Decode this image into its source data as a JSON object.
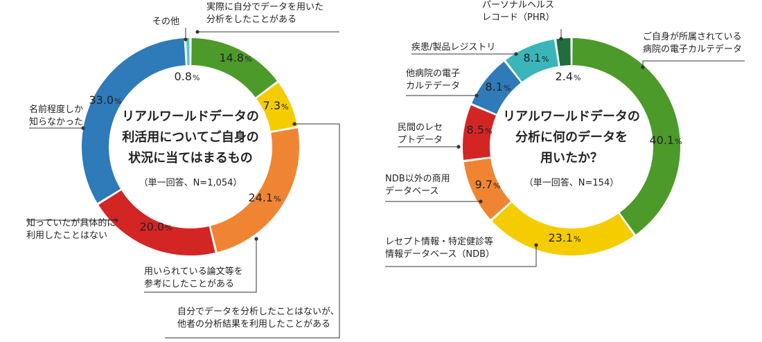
{
  "chart_data": [
    {
      "type": "pie",
      "donut": true,
      "center_title": [
        "リアルワールドデータの",
        "利活用についてご自身の",
        "状況に当てはまるもの"
      ],
      "center_subtitle": "（単一回答、N=1,054）",
      "slices": [
        {
          "label": [
            "実際に自分でデータを用いた",
            "分析をしたことがある"
          ],
          "value": 14.8,
          "value_text": "14.8",
          "color": "#4c9a2a"
        },
        {
          "label": [
            "自分でデータを分析したことはないが、",
            "他者の分析結果を利用したことがある"
          ],
          "value": 7.3,
          "value_text": "7.3",
          "color": "#f5cc00"
        },
        {
          "label": [
            "用いられている論文等を",
            "参考にしたことがある"
          ],
          "value": 24.1,
          "value_text": "24.1",
          "color": "#ef8533"
        },
        {
          "label": [
            "知っていたが具体的に",
            "利用したことはない"
          ],
          "value": 20.0,
          "value_text": "20.0",
          "color": "#d42525"
        },
        {
          "label": [
            "名前程度しか",
            "知らなかった"
          ],
          "value": 33.0,
          "value_text": "33.0",
          "color": "#2f7ab8"
        },
        {
          "label": [
            "その他"
          ],
          "value": 0.8,
          "value_text": "0.8",
          "color": "#5ec4c4"
        }
      ]
    },
    {
      "type": "pie",
      "donut": true,
      "center_title": [
        "リアルワールドデータの",
        "分析に何のデータを",
        "用いたか？"
      ],
      "center_subtitle": "（単一回答、N=154）",
      "slices": [
        {
          "label": [
            "ご自身が所属されている",
            "病院の電子カルテデータ"
          ],
          "value": 40.1,
          "value_text": "40.1",
          "color": "#4c9a2a"
        },
        {
          "label": [
            "レセプト情報・特定健診等",
            "情報データベース（NDB）"
          ],
          "value": 23.1,
          "value_text": "23.1",
          "color": "#f5cc00"
        },
        {
          "label": [
            "NDB以外の商用",
            "データベース"
          ],
          "value": 9.7,
          "value_text": "9.7",
          "color": "#ef8533"
        },
        {
          "label": [
            "民間のレセ",
            "プトデータ"
          ],
          "value": 8.5,
          "value_text": "8.5",
          "color": "#d42525"
        },
        {
          "label": [
            "他病院の電子",
            "カルテデータ"
          ],
          "value": 8.1,
          "value_text": "8.1",
          "color": "#2f7ab8"
        },
        {
          "label": [
            "疾患/製品レジストリ"
          ],
          "value": 8.1,
          "value_text": "8.1",
          "color": "#3ab5ba"
        },
        {
          "label": [
            "パーソナルヘルス",
            "レコード（PHR）"
          ],
          "value": 2.4,
          "value_text": "2.4",
          "color": "#1f6e3c"
        }
      ]
    }
  ]
}
